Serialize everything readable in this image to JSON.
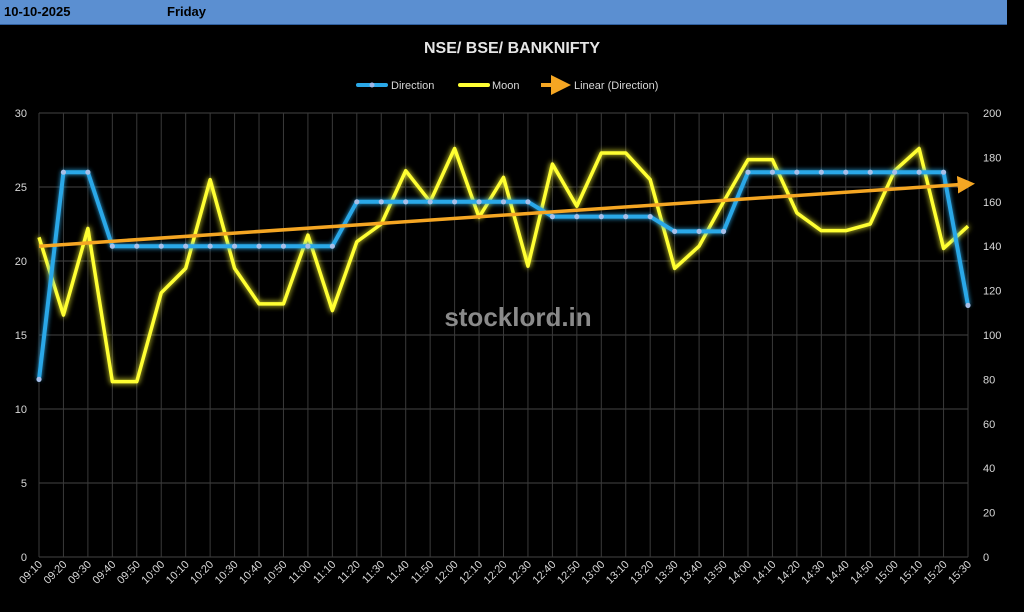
{
  "header": {
    "date": "10-10-2025",
    "day": "Friday"
  },
  "watermark": "stocklord.in",
  "colors": {
    "background": "#000000",
    "header": "#5b8fd1",
    "direction": "#2aa8e8",
    "moon": "#ffff33",
    "trend": "#f5a623",
    "grid": "#444444",
    "text": "#d8d8d8"
  },
  "chart_data": {
    "type": "line",
    "title": "NSE/ BSE/ BANKNIFTY",
    "legend_position": "top",
    "grid": true,
    "categories": [
      "09:10",
      "09:20",
      "09:30",
      "09:40",
      "09:50",
      "10:00",
      "10:10",
      "10:20",
      "10:30",
      "10:40",
      "10:50",
      "11:00",
      "11:10",
      "11:20",
      "11:30",
      "11:40",
      "11:50",
      "12:00",
      "12:10",
      "12:20",
      "12:30",
      "12:40",
      "12:50",
      "13:00",
      "13:10",
      "13:20",
      "13:30",
      "13:40",
      "13:50",
      "14:00",
      "14:10",
      "14:20",
      "14:30",
      "14:40",
      "14:50",
      "15:00",
      "15:10",
      "15:20",
      "15:30"
    ],
    "y_left": {
      "min": 0,
      "max": 30,
      "ticks": [
        0,
        5,
        10,
        15,
        20,
        25,
        30
      ]
    },
    "y_right": {
      "min": 0,
      "max": 200,
      "ticks": [
        0,
        20,
        40,
        60,
        80,
        100,
        120,
        140,
        160,
        180,
        200
      ]
    },
    "series": [
      {
        "name": "Direction",
        "axis": "left",
        "values": [
          12,
          26,
          26,
          21,
          21,
          21,
          21,
          21,
          21,
          21,
          21,
          21,
          21,
          24,
          24,
          24,
          24,
          24,
          24,
          24,
          24,
          23,
          23,
          23,
          23,
          23,
          22,
          22,
          22,
          26,
          26,
          26,
          26,
          26,
          26,
          26,
          26,
          26,
          17
        ]
      },
      {
        "name": "Moon",
        "axis": "right",
        "values": [
          144,
          109,
          148,
          79,
          79,
          119,
          130,
          170,
          130,
          114,
          114,
          145,
          111,
          142,
          150,
          174,
          160,
          184,
          153,
          171,
          131,
          177,
          158,
          182,
          182,
          170,
          130,
          140,
          160,
          179,
          179,
          155,
          147,
          147,
          150,
          174,
          184,
          139,
          149
        ]
      }
    ],
    "trendline": {
      "name": "Linear (Direction)",
      "series": "Direction",
      "start": 21.0,
      "end": 25.2
    }
  }
}
